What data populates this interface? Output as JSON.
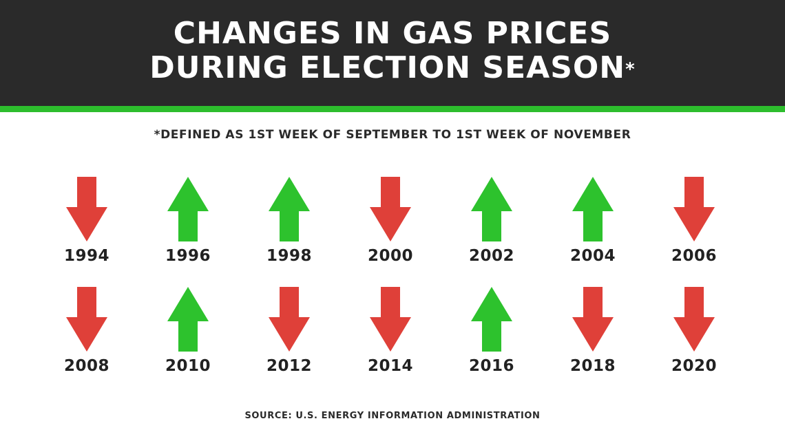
{
  "header": {
    "title_line1": "CHANGES IN GAS PRICES",
    "title_line2": "DURING ELECTION SEASON",
    "title_asterisk": "*"
  },
  "subtitle": "*DEFINED AS 1ST WEEK OF SEPTEMBER TO 1ST WEEK OF NOVEMBER",
  "source": "SOURCE: U.S. ENERGY INFORMATION ADMINISTRATION",
  "colors": {
    "header_bg": "#2a2a2a",
    "accent_stripe": "#2dbd2d",
    "up": "#2dc22d",
    "down": "#df4039"
  },
  "years": [
    {
      "year": "1994",
      "direction": "down",
      "icon": "down-arrow-icon"
    },
    {
      "year": "1996",
      "direction": "up",
      "icon": "up-arrow-icon"
    },
    {
      "year": "1998",
      "direction": "up",
      "icon": "up-arrow-icon"
    },
    {
      "year": "2000",
      "direction": "down",
      "icon": "down-arrow-icon"
    },
    {
      "year": "2002",
      "direction": "up",
      "icon": "up-arrow-icon"
    },
    {
      "year": "2004",
      "direction": "up",
      "icon": "up-arrow-icon"
    },
    {
      "year": "2006",
      "direction": "down",
      "icon": "down-arrow-icon"
    },
    {
      "year": "2008",
      "direction": "down",
      "icon": "down-arrow-icon"
    },
    {
      "year": "2010",
      "direction": "up",
      "icon": "up-arrow-icon"
    },
    {
      "year": "2012",
      "direction": "down",
      "icon": "down-arrow-icon"
    },
    {
      "year": "2014",
      "direction": "down",
      "icon": "down-arrow-icon"
    },
    {
      "year": "2016",
      "direction": "up",
      "icon": "up-arrow-icon"
    },
    {
      "year": "2018",
      "direction": "down",
      "icon": "down-arrow-icon"
    },
    {
      "year": "2020",
      "direction": "down",
      "icon": "down-arrow-icon"
    }
  ]
}
